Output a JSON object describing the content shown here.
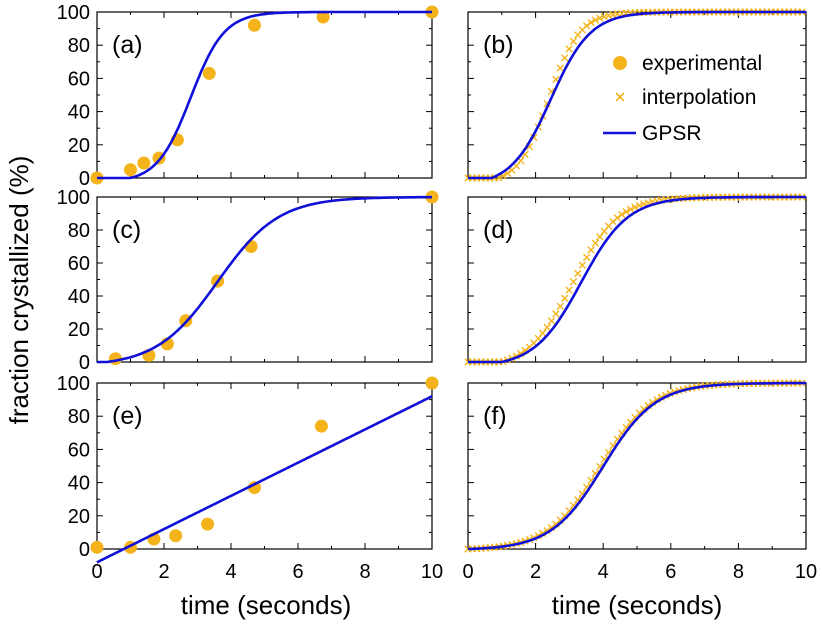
{
  "figure": {
    "ylabel": "fraction crystallized (%)",
    "xlabel": "time (seconds)"
  },
  "legend": {
    "placement": "right side of panel (b)",
    "entries": [
      {
        "label": "experimental",
        "marker": "filled-circle",
        "color": "#f5b31b"
      },
      {
        "label": "interpolation",
        "marker": "x-cross",
        "color": "#f5b31b"
      },
      {
        "label": "GPSR",
        "marker": "line",
        "color": "#1010d8"
      }
    ]
  },
  "chart_data": [
    {
      "panel": "(a)",
      "type": "scatter",
      "xlim": [
        0,
        10
      ],
      "ylim": [
        0,
        100
      ],
      "x_ticks": [
        "0",
        "2",
        "4",
        "6",
        "8",
        "10"
      ],
      "y_ticks": [
        "0",
        "20",
        "40",
        "60",
        "80",
        "100"
      ],
      "series": [
        {
          "name": "experimental",
          "kind": "points",
          "color": "#f5b31b",
          "x": [
            0,
            1.0,
            1.4,
            1.85,
            2.4,
            3.35,
            4.7,
            6.75,
            10.0
          ],
          "y": [
            0,
            5,
            9,
            12,
            23,
            63,
            92,
            97,
            100
          ]
        },
        {
          "name": "GPSR",
          "kind": "curve",
          "color": "#1010d8",
          "function": "logistic",
          "params": {
            "mid": 2.8,
            "k": 2.0,
            "floor_x": 1.0
          }
        }
      ]
    },
    {
      "panel": "(b)",
      "type": "scatter",
      "xlim": [
        0,
        10
      ],
      "ylim": [
        0,
        100
      ],
      "x_ticks": [
        "0",
        "2",
        "4",
        "6",
        "8",
        "10"
      ],
      "y_ticks": [],
      "series": [
        {
          "name": "interpolation",
          "kind": "crosses",
          "color": "#f5b31b",
          "function": "logistic",
          "params": {
            "mid": 2.4,
            "k": 2.2,
            "floor_x": 0.9
          }
        },
        {
          "name": "GPSR",
          "kind": "curve",
          "color": "#1010d8",
          "function": "logistic",
          "params": {
            "mid": 2.45,
            "k": 1.7,
            "floor_x": 0.7
          }
        }
      ]
    },
    {
      "panel": "(c)",
      "type": "scatter",
      "xlim": [
        0,
        10
      ],
      "ylim": [
        0,
        100
      ],
      "x_ticks": [
        "0",
        "2",
        "4",
        "6",
        "8",
        "10"
      ],
      "y_ticks": [
        "0",
        "20",
        "40",
        "60",
        "80",
        "100"
      ],
      "series": [
        {
          "name": "experimental",
          "kind": "points",
          "color": "#f5b31b",
          "x": [
            0.55,
            1.55,
            2.1,
            2.65,
            3.6,
            4.6,
            10.0
          ],
          "y": [
            2,
            4,
            11,
            25,
            49,
            70,
            100
          ]
        },
        {
          "name": "GPSR",
          "kind": "curve",
          "color": "#1010d8",
          "function": "logistic",
          "params": {
            "mid": 3.6,
            "k": 1.1,
            "floor_x": 0.3
          }
        }
      ]
    },
    {
      "panel": "(d)",
      "type": "scatter",
      "xlim": [
        0,
        10
      ],
      "ylim": [
        0,
        100
      ],
      "x_ticks": [
        "0",
        "2",
        "4",
        "6",
        "8",
        "10"
      ],
      "y_ticks": [],
      "series": [
        {
          "name": "interpolation",
          "kind": "crosses",
          "color": "#f5b31b",
          "function": "logistic",
          "params": {
            "mid": 3.1,
            "k": 1.5,
            "floor_x": 1.0
          }
        },
        {
          "name": "GPSR",
          "kind": "curve",
          "color": "#1010d8",
          "function": "logistic",
          "params": {
            "mid": 3.35,
            "k": 1.45,
            "floor_x": 1.0
          }
        }
      ]
    },
    {
      "panel": "(e)",
      "type": "scatter",
      "xlim": [
        0,
        10
      ],
      "ylim": [
        0,
        100
      ],
      "x_ticks": [
        "0",
        "2",
        "4",
        "6",
        "8",
        "10"
      ],
      "y_ticks": [
        "0",
        "20",
        "40",
        "60",
        "80",
        "100"
      ],
      "series": [
        {
          "name": "experimental",
          "kind": "points",
          "color": "#f5b31b",
          "x": [
            0,
            1.0,
            1.7,
            2.35,
            3.3,
            4.7,
            6.7,
            10.0
          ],
          "y": [
            1,
            1,
            6,
            8,
            15,
            37,
            74,
            100
          ]
        },
        {
          "name": "GPSR",
          "kind": "curve",
          "color": "#1010d8",
          "function": "linear",
          "params": {
            "slope": 10.0,
            "intercept": -8.0
          }
        }
      ]
    },
    {
      "panel": "(f)",
      "type": "scatter",
      "xlim": [
        0,
        10
      ],
      "ylim": [
        0,
        100
      ],
      "x_ticks": [
        "0",
        "2",
        "4",
        "6",
        "8",
        "10"
      ],
      "y_ticks": [],
      "series": [
        {
          "name": "interpolation",
          "kind": "crosses",
          "color": "#f5b31b",
          "function": "logistic",
          "params": {
            "mid": 3.9,
            "k": 1.3,
            "floor_x": 0.0
          }
        },
        {
          "name": "GPSR",
          "kind": "curve",
          "color": "#1010d8",
          "function": "logistic",
          "params": {
            "mid": 4.0,
            "k": 1.3,
            "floor_x": 0.0
          }
        }
      ]
    }
  ]
}
